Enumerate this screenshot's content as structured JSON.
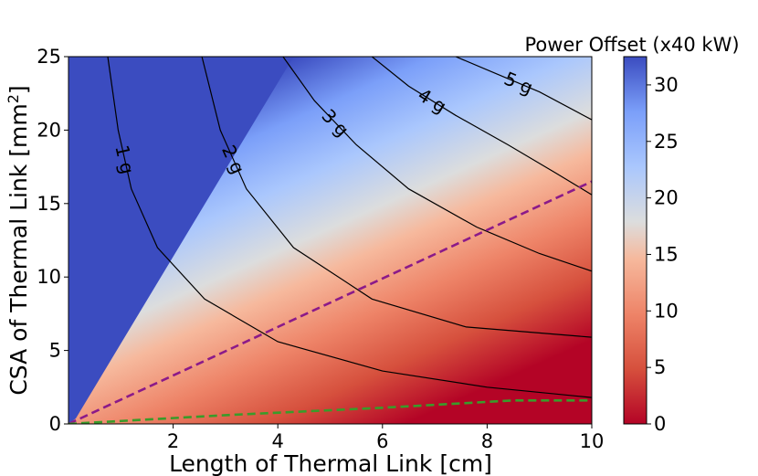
{
  "chart_data": {
    "type": "heatmap",
    "title": "",
    "xlabel": "Length of Thermal Link [cm]",
    "ylabel_main": "CSA of Thermal Link [mm",
    "ylabel_sup": "2",
    "ylabel_close": "]",
    "xlim": [
      0,
      10
    ],
    "ylim": [
      0,
      25
    ],
    "xticks": [
      "2",
      "4",
      "6",
      "8",
      "10"
    ],
    "yticks": [
      "0",
      "5",
      "10",
      "15",
      "20",
      "25"
    ],
    "colorbar": {
      "title": "Power Offset (x40 kW)",
      "range": [
        0,
        32.5
      ],
      "ticks": [
        "0",
        "5",
        "10",
        "15",
        "20",
        "25",
        "30"
      ],
      "colormap": "coolwarm_r"
    },
    "contours": [
      {
        "label": "1 g",
        "points": [
          [
            0.75,
            25
          ],
          [
            0.95,
            20
          ],
          [
            1.2,
            16
          ],
          [
            1.7,
            12
          ],
          [
            2.6,
            8.5
          ],
          [
            4.0,
            5.6
          ],
          [
            6.0,
            3.6
          ],
          [
            8.0,
            2.5
          ],
          [
            10.0,
            1.8
          ]
        ]
      },
      {
        "label": "2 g",
        "points": [
          [
            2.55,
            25
          ],
          [
            2.9,
            20
          ],
          [
            3.4,
            16
          ],
          [
            4.3,
            12
          ],
          [
            5.8,
            8.5
          ],
          [
            7.6,
            6.6
          ],
          [
            10.0,
            5.9
          ]
        ]
      },
      {
        "label": "3 g",
        "points": [
          [
            4.1,
            25
          ],
          [
            4.7,
            22
          ],
          [
            5.5,
            19
          ],
          [
            6.5,
            16
          ],
          [
            7.8,
            13.4
          ],
          [
            9.0,
            11.6
          ],
          [
            10.0,
            10.4
          ]
        ]
      },
      {
        "label": "4 g",
        "points": [
          [
            5.8,
            25
          ],
          [
            6.5,
            23
          ],
          [
            7.4,
            21
          ],
          [
            8.4,
            19
          ],
          [
            9.3,
            17.1
          ],
          [
            10.0,
            15.6
          ]
        ]
      },
      {
        "label": "5 g",
        "points": [
          [
            7.4,
            25
          ],
          [
            8.2,
            23.8
          ],
          [
            9.0,
            22.6
          ],
          [
            10.0,
            20.7
          ]
        ]
      }
    ],
    "lines": [
      {
        "name": "",
        "color": "#8b1a89",
        "dash": true,
        "points": [
          [
            0,
            0
          ],
          [
            10,
            16.5
          ]
        ]
      },
      {
        "name": "",
        "color": "#3a9b2a",
        "dash": true,
        "points": [
          [
            0,
            0
          ],
          [
            3,
            0.6
          ],
          [
            6,
            1.1
          ],
          [
            8.5,
            1.6
          ],
          [
            10,
            1.6
          ]
        ]
      }
    ]
  }
}
